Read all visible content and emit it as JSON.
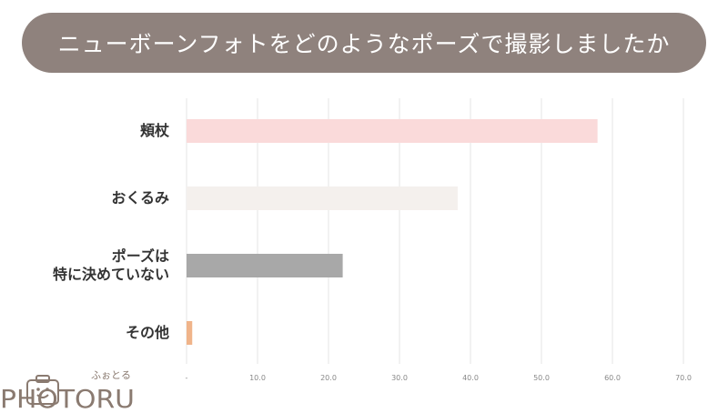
{
  "chart_data": {
    "type": "bar",
    "orientation": "horizontal",
    "title": "ニューボーンフォトをどのようなポーズで撮影しましたか",
    "categories": [
      "頬杖",
      "おくるみ",
      "ポーズは\n特に決めていない",
      "その他"
    ],
    "values": [
      57.9,
      38.2,
      22.0,
      0.8
    ],
    "bar_colors": [
      "#fadada",
      "#f4f0ed",
      "#a8a8a8",
      "#f0b48a"
    ],
    "xlim": [
      0,
      70
    ],
    "ticks": [
      "-",
      "10.0",
      "20.0",
      "30.0",
      "40.0",
      "50.0",
      "60.0",
      "70.0"
    ],
    "grid": true
  },
  "logo": {
    "text": "PHOTORU",
    "kana": "ふぉとる"
  },
  "colors": {
    "title_bg": "#8f827d",
    "grid": "#e6e6e6",
    "logo": "#8a7a70"
  }
}
